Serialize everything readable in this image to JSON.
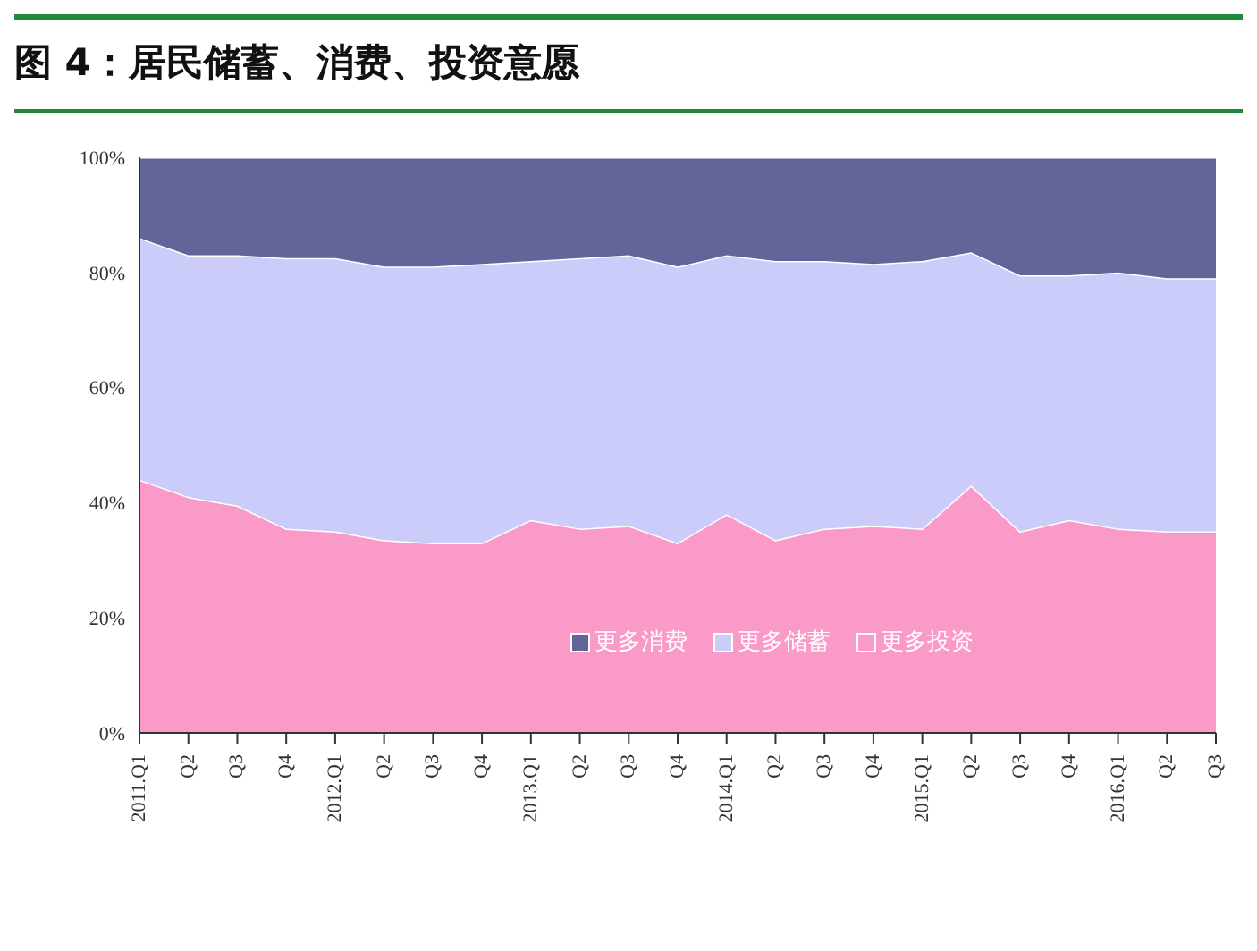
{
  "chart_data": {
    "type": "area",
    "title": "图 4：居民储蓄、消费、投资意愿",
    "stacked": true,
    "categories": [
      "2011.Q1",
      "Q2",
      "Q3",
      "Q4",
      "2012.Q1",
      "Q2",
      "Q3",
      "Q4",
      "2013.Q1",
      "Q2",
      "Q3",
      "Q4",
      "2014.Q1",
      "Q2",
      "Q3",
      "Q4",
      "2015.Q1",
      "Q2",
      "Q3",
      "Q4",
      "2016.Q1",
      "Q2",
      "Q3"
    ],
    "series": [
      {
        "name": "更多投资",
        "color": "#f99ac8",
        "values": [
          44,
          41,
          39.5,
          35.5,
          35,
          33.5,
          33,
          33,
          37,
          35.5,
          36,
          33,
          38,
          33.5,
          35.5,
          36,
          35.5,
          43,
          35,
          37,
          35.5,
          35,
          35
        ]
      },
      {
        "name": "更多储蓄",
        "color": "#ccccfa",
        "values": [
          42,
          42,
          43.5,
          47,
          47.5,
          47.5,
          48,
          48.5,
          45,
          47,
          47,
          48,
          45,
          48.5,
          46.5,
          45.5,
          46.5,
          40.5,
          44.5,
          42.5,
          44.5,
          44,
          44
        ]
      },
      {
        "name": "更多消费",
        "color": "#62649a",
        "values": [
          14,
          17,
          17,
          17.5,
          17.5,
          19,
          19,
          18.5,
          18,
          17.5,
          17,
          19,
          17,
          18,
          18,
          18.5,
          18,
          16.5,
          20.5,
          20.5,
          20,
          21,
          21
        ]
      }
    ],
    "ylim": [
      0,
      100
    ],
    "yticks": [
      {
        "value": 0,
        "label": "0%"
      },
      {
        "value": 20,
        "label": "20%"
      },
      {
        "value": 40,
        "label": "40%"
      },
      {
        "value": 60,
        "label": "60%"
      },
      {
        "value": 80,
        "label": "80%"
      },
      {
        "value": 100,
        "label": "100%"
      }
    ],
    "legend": "bottom",
    "grid": false
  }
}
